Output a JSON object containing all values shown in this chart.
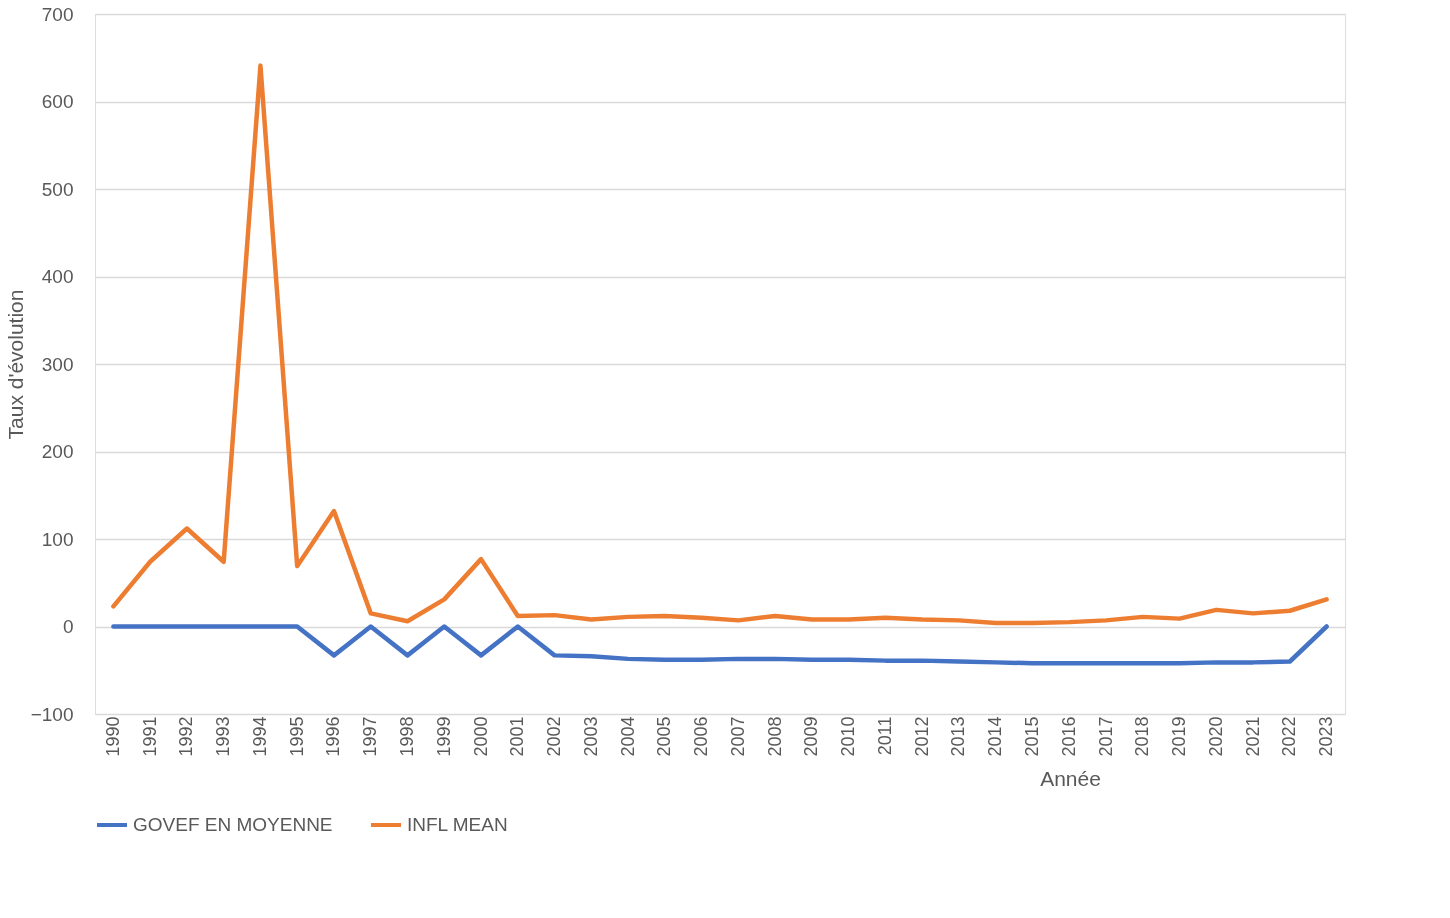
{
  "chart_data": {
    "type": "line",
    "xlabel": "Année",
    "ylabel": "Taux d'évolution",
    "categories": [
      "1990",
      "1991",
      "1992",
      "1993",
      "1994",
      "1995",
      "1996",
      "1997",
      "1998",
      "1999",
      "2000",
      "2001",
      "2002",
      "2003",
      "2004",
      "2005",
      "2006",
      "2007",
      "2008",
      "2009",
      "2010",
      "2011",
      "2012",
      "2013",
      "2014",
      "2015",
      "2016",
      "2017",
      "2018",
      "2019",
      "2020",
      "2021",
      "2022",
      "2023"
    ],
    "series": [
      {
        "name": "GOVEF EN MOYENNE",
        "color": "#4472c4",
        "values": [
          0,
          0,
          0,
          0,
          0,
          0,
          -33,
          0,
          -33,
          0,
          -33,
          0,
          -33,
          -34,
          -37,
          -38,
          -38,
          -37,
          -37,
          -38,
          -38,
          -39,
          -39,
          -40,
          -41,
          -42,
          -42,
          -42,
          -42,
          -42,
          -41,
          -41,
          -40,
          0
        ]
      },
      {
        "name": "INFL MEAN",
        "color": "#ed7d31",
        "values": [
          23,
          74,
          112,
          74,
          641,
          69,
          132,
          15,
          6,
          31,
          77,
          12,
          13,
          8,
          11,
          12,
          10,
          7,
          12,
          8,
          8,
          10,
          8,
          7,
          4,
          4,
          5,
          7,
          11,
          9,
          19,
          15,
          18,
          31
        ]
      }
    ],
    "ylim": [
      -100,
      700
    ],
    "yticks": [
      -100,
      0,
      100,
      200,
      300,
      400,
      500,
      600,
      700
    ],
    "grid": "y",
    "legend": "bottom",
    "marker": "none",
    "line_style": "solid"
  }
}
